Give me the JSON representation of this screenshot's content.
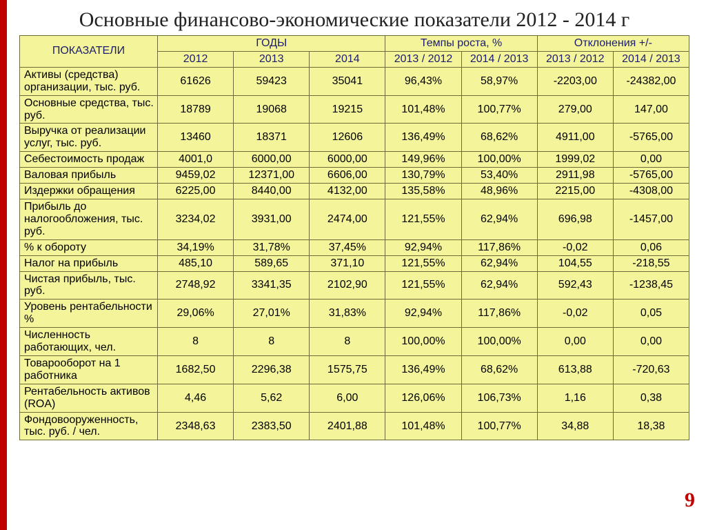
{
  "title": "Основные финансово-экономические показатели 2012 - 2014 г",
  "title_fontsize": 30,
  "title_color": "#222222",
  "accent_color": "#c00000",
  "slide_number": "9",
  "slide_number_fontsize": 30,
  "slide_number_color": "#c00000",
  "table": {
    "type": "table",
    "background_color": "#f4f59a",
    "border_color": "#6b6b3a",
    "header_text_color": "#1b1b70",
    "cell_text_color": "#000000",
    "font_size": 16,
    "header_font_size": 16,
    "columns": {
      "indicator": "ПОКАЗАТЕЛИ",
      "group_years": "ГОДЫ",
      "group_growth": "Темпы роста, %",
      "group_dev": "Отклонения +/-",
      "y2012": "2012",
      "y2013": "2013",
      "y2014": "2014",
      "g1": "2013 / 2012",
      "g2": "2014 / 2013",
      "d1": "2013 / 2012",
      "d2": "2014 / 2013"
    },
    "rows": [
      {
        "label": "Активы (средства) организации, тыс. руб.",
        "y2012": "61626",
        "y2013": "59423",
        "y2014": "35041",
        "g1": "96,43%",
        "g2": "58,97%",
        "d1": "-2203,00",
        "d2": "-24382,00"
      },
      {
        "label": "Основные средства, тыс. руб.",
        "y2012": "18789",
        "y2013": "19068",
        "y2014": "19215",
        "g1": "101,48%",
        "g2": "100,77%",
        "d1": "279,00",
        "d2": "147,00"
      },
      {
        "label": "Выручка от реализации услуг, тыс. руб.",
        "y2012": "13460",
        "y2013": "18371",
        "y2014": "12606",
        "g1": "136,49%",
        "g2": "68,62%",
        "d1": "4911,00",
        "d2": "-5765,00"
      },
      {
        "label": "Себестоимость продаж",
        "y2012": "4001,0",
        "y2013": "6000,00",
        "y2014": "6000,00",
        "g1": "149,96%",
        "g2": "100,00%",
        "d1": "1999,02",
        "d2": "0,00"
      },
      {
        "label": "Валовая прибыль",
        "y2012": "9459,02",
        "y2013": "12371,00",
        "y2014": "6606,00",
        "g1": "130,79%",
        "g2": "53,40%",
        "d1": "2911,98",
        "d2": "-5765,00"
      },
      {
        "label": "Издержки обращения",
        "y2012": "6225,00",
        "y2013": "8440,00",
        "y2014": "4132,00",
        "g1": "135,58%",
        "g2": "48,96%",
        "d1": "2215,00",
        "d2": "-4308,00"
      },
      {
        "label": "Прибыль до налогообложения, тыс. руб.",
        "y2012": "3234,02",
        "y2013": "3931,00",
        "y2014": "2474,00",
        "g1": "121,55%",
        "g2": "62,94%",
        "d1": "696,98",
        "d2": "-1457,00"
      },
      {
        "label": "% к обороту",
        "y2012": "34,19%",
        "y2013": "31,78%",
        "y2014": "37,45%",
        "g1": "92,94%",
        "g2": "117,86%",
        "d1": "-0,02",
        "d2": "0,06"
      },
      {
        "label": "Налог на прибыль",
        "y2012": "485,10",
        "y2013": "589,65",
        "y2014": "371,10",
        "g1": "121,55%",
        "g2": "62,94%",
        "d1": "104,55",
        "d2": "-218,55"
      },
      {
        "label": "Чистая прибыль, тыс. руб.",
        "y2012": "2748,92",
        "y2013": "3341,35",
        "y2014": "2102,90",
        "g1": "121,55%",
        "g2": "62,94%",
        "d1": "592,43",
        "d2": "-1238,45"
      },
      {
        "label": "Уровень рентабельности %",
        "y2012": "29,06%",
        "y2013": "27,01%",
        "y2014": "31,83%",
        "g1": "92,94%",
        "g2": "117,86%",
        "d1": "-0,02",
        "d2": "0,05"
      },
      {
        "label": "Численность работающих, чел.",
        "y2012": "8",
        "y2013": "8",
        "y2014": "8",
        "g1": "100,00%",
        "g2": "100,00%",
        "d1": "0,00",
        "d2": "0,00"
      },
      {
        "label": "Товарооборот на 1 работника",
        "y2012": "1682,50",
        "y2013": "2296,38",
        "y2014": "1575,75",
        "g1": "136,49%",
        "g2": "68,62%",
        "d1": "613,88",
        "d2": "-720,63"
      },
      {
        "label": "Рентабельность активов (ROA)",
        "y2012": "4,46",
        "y2013": "5,62",
        "y2014": "6,00",
        "g1": "126,06%",
        "g2": "106,73%",
        "d1": "1,16",
        "d2": "0,38"
      },
      {
        "label": "Фондовооруженность, тыс. руб. / чел.",
        "y2012": "2348,63",
        "y2013": "2383,50",
        "y2014": "2401,88",
        "g1": "101,48%",
        "g2": "100,77%",
        "d1": "34,88",
        "d2": "18,38"
      }
    ]
  }
}
